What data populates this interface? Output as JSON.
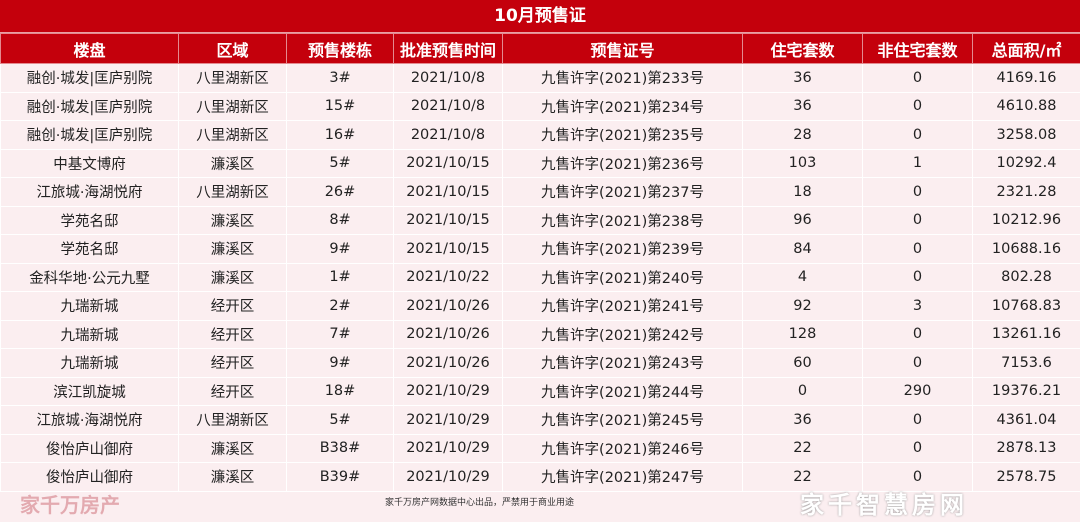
{
  "title": "10月预售证",
  "columns": [
    "楼盘",
    "区域",
    "预售楼栋",
    "批准预售时间",
    "预售证号",
    "住宅套数",
    "非住宅套数",
    "总面积/㎡"
  ],
  "rows": [
    [
      "融创·城发|匡庐别院",
      "八里湖新区",
      "3#",
      "2021/10/8",
      "九售许字(2021)第233号",
      "36",
      "0",
      "4169.16"
    ],
    [
      "融创·城发|匡庐别院",
      "八里湖新区",
      "15#",
      "2021/10/8",
      "九售许字(2021)第234号",
      "36",
      "0",
      "4610.88"
    ],
    [
      "融创·城发|匡庐别院",
      "八里湖新区",
      "16#",
      "2021/10/8",
      "九售许字(2021)第235号",
      "28",
      "0",
      "3258.08"
    ],
    [
      "中基文博府",
      "濂溪区",
      "5#",
      "2021/10/15",
      "九售许字(2021)第236号",
      "103",
      "1",
      "10292.4"
    ],
    [
      "江旅城·海湖悦府",
      "八里湖新区",
      "26#",
      "2021/10/15",
      "九售许字(2021)第237号",
      "18",
      "0",
      "2321.28"
    ],
    [
      "学苑名邸",
      "濂溪区",
      "8#",
      "2021/10/15",
      "九售许字(2021)第238号",
      "96",
      "0",
      "10212.96"
    ],
    [
      "学苑名邸",
      "濂溪区",
      "9#",
      "2021/10/15",
      "九售许字(2021)第239号",
      "84",
      "0",
      "10688.16"
    ],
    [
      "金科华地·公元九墅",
      "濂溪区",
      "1#",
      "2021/10/22",
      "九售许字(2021)第240号",
      "4",
      "0",
      "802.28"
    ],
    [
      "九瑞新城",
      "经开区",
      "2#",
      "2021/10/26",
      "九售许字(2021)第241号",
      "92",
      "3",
      "10768.83"
    ],
    [
      "九瑞新城",
      "经开区",
      "7#",
      "2021/10/26",
      "九售许字(2021)第242号",
      "128",
      "0",
      "13261.16"
    ],
    [
      "九瑞新城",
      "经开区",
      "9#",
      "2021/10/26",
      "九售许字(2021)第243号",
      "60",
      "0",
      "7153.6"
    ],
    [
      "滨江凯旋城",
      "经开区",
      "18#",
      "2021/10/29",
      "九售许字(2021)第244号",
      "0",
      "290",
      "19376.21"
    ],
    [
      "江旅城·海湖悦府",
      "八里湖新区",
      "5#",
      "2021/10/29",
      "九售许字(2021)第245号",
      "36",
      "0",
      "4361.04"
    ],
    [
      "俊怡庐山御府",
      "濂溪区",
      "B38#",
      "2021/10/29",
      "九售许字(2021)第246号",
      "22",
      "0",
      "2878.13"
    ],
    [
      "俊怡庐山御府",
      "濂溪区",
      "B39#",
      "2021/10/29",
      "九售许字(2021)第247号",
      "22",
      "0",
      "2578.75"
    ]
  ],
  "footer": "家千万房产网数据中心出品，严禁用于商业用途",
  "watermark": "家千万房产",
  "overlay_watermark": "家千智慧房网",
  "colors": {
    "header_red": "#c4000c",
    "row_bg": "#fbeef0"
  }
}
